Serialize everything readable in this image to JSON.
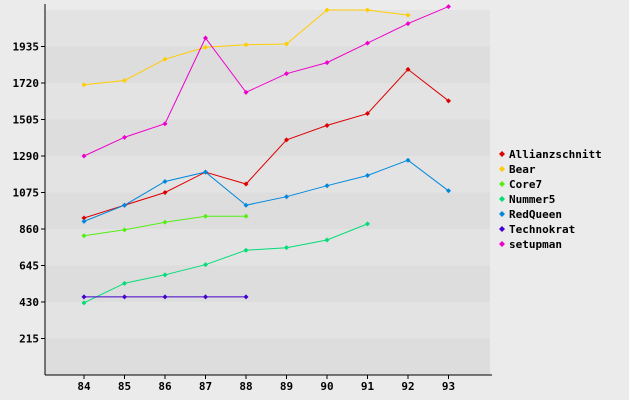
{
  "chart_data": {
    "type": "line",
    "title": "",
    "xlabel": "",
    "ylabel": "",
    "categories": [
      "84",
      "85",
      "86",
      "87",
      "88",
      "89",
      "90",
      "91",
      "92",
      "93"
    ],
    "y_ticks": [
      215,
      430,
      645,
      860,
      1075,
      1290,
      1505,
      1720,
      1935
    ],
    "ylim": [
      0,
      2150
    ],
    "grid": "horizontal bands",
    "legend_position": "right",
    "series": [
      {
        "name": "Allianzschnitt",
        "color": "#dd0000",
        "values": [
          925,
          1000,
          1075,
          1195,
          1125,
          1385,
          1470,
          1540,
          1800,
          1615
        ]
      },
      {
        "name": "Bear",
        "color": "#ffcc00",
        "values": [
          1710,
          1735,
          1860,
          1930,
          1945,
          1950,
          2150,
          2150,
          2120,
          null
        ]
      },
      {
        "name": "Core7",
        "color": "#55ee11",
        "values": [
          820,
          855,
          900,
          935,
          935,
          null,
          null,
          null,
          null,
          null
        ]
      },
      {
        "name": "Nummer5",
        "color": "#00dd77",
        "values": [
          425,
          540,
          590,
          650,
          735,
          750,
          795,
          890,
          null,
          null
        ]
      },
      {
        "name": "RedQueen",
        "color": "#0088dd",
        "values": [
          905,
          1000,
          1140,
          1195,
          1000,
          1050,
          1115,
          1175,
          1265,
          1085
        ]
      },
      {
        "name": "Technokrat",
        "color": "#4400cc",
        "values": [
          460,
          460,
          460,
          460,
          460,
          null,
          null,
          null,
          null,
          null
        ]
      },
      {
        "name": "setupman",
        "color": "#ee00cc",
        "values": [
          1290,
          1400,
          1480,
          1985,
          1665,
          1775,
          1840,
          1955,
          2070,
          2170
        ]
      }
    ]
  }
}
